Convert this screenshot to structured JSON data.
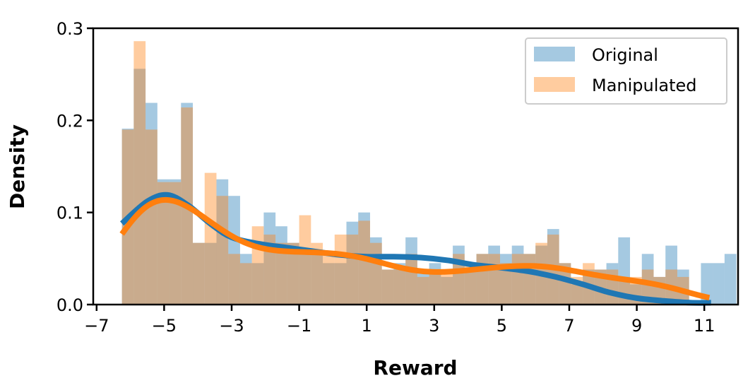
{
  "chart_data": {
    "type": "histogram+kde",
    "xlabel": "Reward",
    "ylabel": "Density",
    "xlim": [
      -7.1,
      12
    ],
    "ylim": [
      0,
      0.3
    ],
    "xticks": [
      -7,
      -5,
      -3,
      -1,
      1,
      3,
      5,
      7,
      9,
      11
    ],
    "xtick_labels": [
      "−7",
      "−5",
      "−3",
      "−1",
      "1",
      "3",
      "5",
      "7",
      "9",
      "11"
    ],
    "yticks": [
      0,
      0.1,
      0.2,
      0.3
    ],
    "ytick_labels": [
      "0.0",
      "0.1",
      "0.2",
      "0.3"
    ],
    "legend": {
      "position": "top-right",
      "entries": [
        "Original",
        "Manipulated"
      ]
    },
    "grid": false,
    "series": [
      {
        "name": "Original",
        "color": "#1f77b4",
        "bin_start": -6.25,
        "bin_width": 0.35,
        "density": [
          0.191,
          0.256,
          0.219,
          0.136,
          0.136,
          0.219,
          0.067,
          0.067,
          0.136,
          0.118,
          0.055,
          0.045,
          0.1,
          0.085,
          0.067,
          0.055,
          0.055,
          0.045,
          0.045,
          0.09,
          0.1,
          0.073,
          0.038,
          0.045,
          0.073,
          0.038,
          0.045,
          0.03,
          0.064,
          0.038,
          0.055,
          0.064,
          0.055,
          0.064,
          0.055,
          0.064,
          0.082,
          0.045,
          0.022,
          0.038,
          0.038,
          0.045,
          0.073,
          0.022,
          0.055,
          0.03,
          0.064,
          0.038,
          0.0,
          0.045,
          0.045,
          0.055,
          0.0,
          0.0,
          0.0,
          0.0,
          0.0,
          0.0,
          0.0,
          0.0,
          0.0,
          0.0
        ],
        "kde": [
          [
            -6.25,
            0.088
          ],
          [
            -5.5,
            0.112
          ],
          [
            -4.9,
            0.119
          ],
          [
            -4.3,
            0.108
          ],
          [
            -3.6,
            0.087
          ],
          [
            -3.0,
            0.073
          ],
          [
            -2.2,
            0.066
          ],
          [
            -1.4,
            0.062
          ],
          [
            -0.6,
            0.058
          ],
          [
            0.2,
            0.054
          ],
          [
            1.0,
            0.052
          ],
          [
            1.8,
            0.052
          ],
          [
            2.6,
            0.051
          ],
          [
            3.4,
            0.048
          ],
          [
            4.2,
            0.043
          ],
          [
            5.0,
            0.04
          ],
          [
            5.8,
            0.036
          ],
          [
            6.6,
            0.03
          ],
          [
            7.4,
            0.022
          ],
          [
            8.2,
            0.013
          ],
          [
            9.0,
            0.007
          ],
          [
            9.8,
            0.004
          ],
          [
            10.6,
            0.002
          ],
          [
            11.2,
            0.002
          ]
        ]
      },
      {
        "name": "Manipulated",
        "color": "#ff7f0e",
        "bin_start": -6.25,
        "bin_width": 0.35,
        "density": [
          0.19,
          0.286,
          0.19,
          0.133,
          0.133,
          0.214,
          0.067,
          0.143,
          0.118,
          0.055,
          0.045,
          0.085,
          0.076,
          0.067,
          0.067,
          0.097,
          0.067,
          0.058,
          0.076,
          0.076,
          0.091,
          0.067,
          0.038,
          0.038,
          0.055,
          0.03,
          0.038,
          0.038,
          0.055,
          0.045,
          0.055,
          0.055,
          0.045,
          0.055,
          0.055,
          0.067,
          0.076,
          0.045,
          0.03,
          0.045,
          0.038,
          0.038,
          0.03,
          0.03,
          0.038,
          0.03,
          0.038,
          0.03,
          0.0,
          0.0,
          0.0,
          0.0,
          0.0,
          0.0,
          0.0,
          0.0,
          0.0,
          0.022,
          0.022,
          0.022,
          0.037,
          0.03
        ]
      }
    ]
  }
}
